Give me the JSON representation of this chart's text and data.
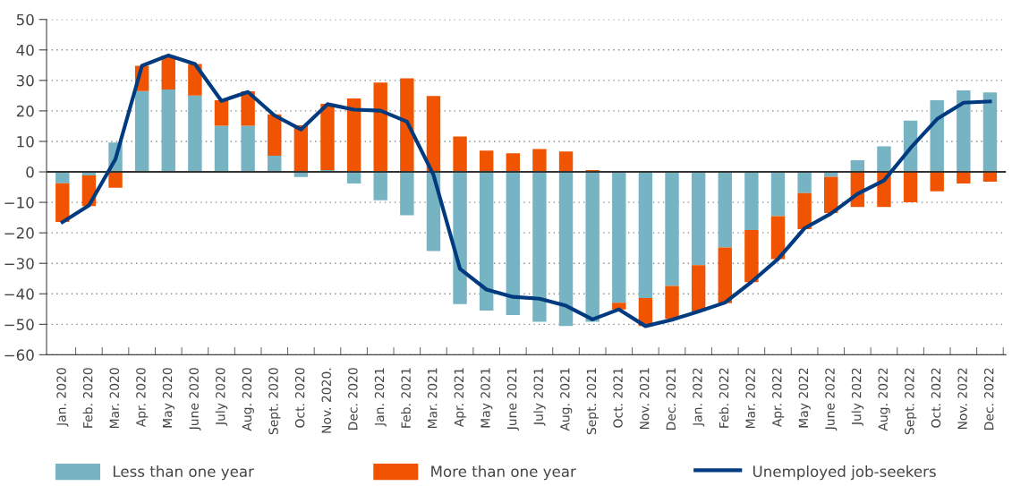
{
  "chart_data": {
    "type": "bar",
    "stacked": true,
    "categories": [
      "Jan. 2020",
      "Feb. 2020",
      "Mar. 2020",
      "Apr. 2020",
      "May 2020",
      "June 2020",
      "July 2020",
      "Aug. 2020",
      "Sept. 2020",
      "Oct. 2020",
      "Nov. 2020.",
      "Dec. 2020",
      "Jan. 2021",
      "Feb. 2021",
      "Mar. 2021",
      "Apr. 2021",
      "May 2021",
      "June 2021",
      "July 2021",
      "Aug. 2021",
      "Sept. 2021",
      "Oct. 2021",
      "Nov. 2021",
      "Dec. 2021",
      "Jan. 2022",
      "Feb. 2022",
      "Mar. 2022",
      "Apr. 2022",
      "May 2022",
      "June 2022",
      "July 2022",
      "Aug. 2022",
      "Sept. 2022",
      "Oct. 2022",
      "Nov. 2022",
      "Dec. 2022"
    ],
    "series": [
      {
        "name": "Less than one year",
        "color": "#76b3c3",
        "values": [
          -3.7,
          -1.2,
          9.6,
          26.5,
          27,
          25,
          15.1,
          15.1,
          5.3,
          -1.7,
          0.6,
          -3.8,
          -9.3,
          -14.2,
          -26,
          -43.4,
          -45.5,
          -47,
          -49.2,
          -50.6,
          -49.2,
          -42.9,
          -41.4,
          -37.4,
          -30.6,
          -24.8,
          -19.1,
          -14.5,
          -7,
          -1.6,
          3.8,
          8.4,
          16.8,
          23.5,
          26.7,
          26.1
        ]
      },
      {
        "name": "More than one year",
        "color": "#f05400",
        "values": [
          -12.7,
          -10,
          -5.2,
          8.3,
          11.2,
          10.4,
          8.4,
          11.3,
          13.6,
          15.3,
          21.7,
          24.1,
          29.3,
          30.7,
          24.9,
          11.6,
          7,
          6.1,
          7.5,
          6.7,
          0.6,
          -2.2,
          -9.2,
          -10.8,
          -15.2,
          -18.3,
          -17.1,
          -14.1,
          -11.8,
          -11.9,
          -11.5,
          -11.5,
          -10,
          -6.4,
          -3.8,
          -3.2
        ]
      },
      {
        "name": "Unemployed job-seekers",
        "type": "line",
        "color": "#003b80",
        "values": [
          -16.5,
          -11,
          4.2,
          34.8,
          38.2,
          35.4,
          23.3,
          26.2,
          18.5,
          13.9,
          22.2,
          20.4,
          20.1,
          16.5,
          -1,
          -31.8,
          -38.6,
          -41,
          -41.6,
          -43.9,
          -48.4,
          -45.1,
          -50.6,
          -48.5,
          -45.8,
          -42.9,
          -36.1,
          -28.6,
          -18.5,
          -13.7,
          -7.2,
          -2.8,
          7.8,
          17.3,
          22.7,
          23.1
        ]
      }
    ],
    "ylim": [
      -60,
      50
    ],
    "yticks": [
      -60,
      -50,
      -40,
      -30,
      -20,
      -10,
      0,
      10,
      20,
      30,
      40,
      50
    ],
    "ref_lines": [
      {
        "axis": "y",
        "value": 0,
        "color": "#333333"
      }
    ],
    "grid": "y",
    "legend": "bottom",
    "line_style": "solid",
    "marker": "none"
  }
}
